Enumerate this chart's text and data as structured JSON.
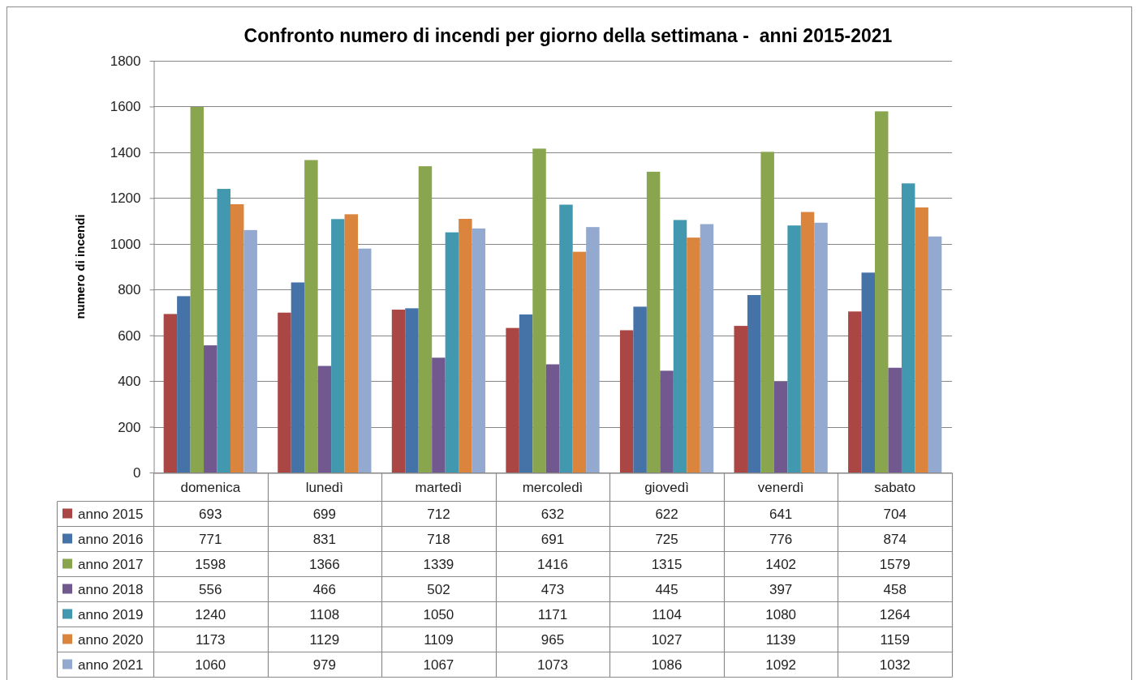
{
  "chart_data": {
    "type": "bar",
    "title": "Confronto numero di incendi per giorno della settimana -  anni 2015-2021",
    "ylabel": "numero di incendi",
    "categories": [
      "domenica",
      "lunedì",
      "martedì",
      "mercoledì",
      "giovedì",
      "venerdì",
      "sabato"
    ],
    "series": [
      {
        "name": "anno 2015",
        "color": "#aa4643",
        "values": [
          693,
          699,
          712,
          632,
          622,
          641,
          704
        ]
      },
      {
        "name": "anno 2016",
        "color": "#4572a7",
        "values": [
          771,
          831,
          718,
          691,
          725,
          776,
          874
        ]
      },
      {
        "name": "anno 2017",
        "color": "#89a54e",
        "values": [
          1598,
          1366,
          1339,
          1416,
          1315,
          1402,
          1579
        ]
      },
      {
        "name": "anno 2018",
        "color": "#71588f",
        "values": [
          556,
          466,
          502,
          473,
          445,
          397,
          458
        ]
      },
      {
        "name": "anno 2019",
        "color": "#4198af",
        "values": [
          1240,
          1108,
          1050,
          1171,
          1104,
          1080,
          1264
        ]
      },
      {
        "name": "anno 2020",
        "color": "#db843d",
        "values": [
          1173,
          1129,
          1109,
          965,
          1027,
          1139,
          1159
        ]
      },
      {
        "name": "anno 2021",
        "color": "#93a9cf",
        "values": [
          1060,
          979,
          1067,
          1073,
          1086,
          1092,
          1032
        ]
      }
    ],
    "ylim": [
      0,
      1800
    ],
    "yticks": [
      0,
      200,
      400,
      600,
      800,
      1000,
      1200,
      1400,
      1600,
      1800
    ],
    "grid": "y",
    "legend": "bottom",
    "data_labels": true
  }
}
